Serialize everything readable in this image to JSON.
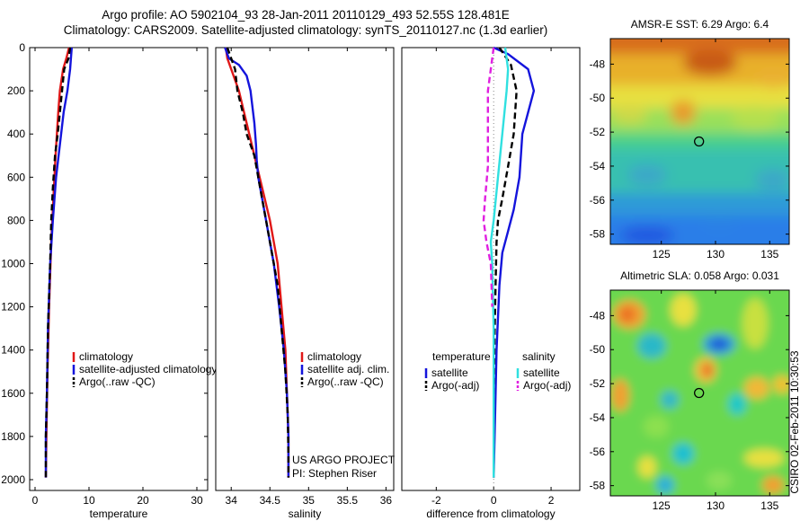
{
  "header": {
    "line1": "Argo profile: AO 5902104_93 28-Jan-2011 20110129_493 52.55S 128.481E",
    "line2": "Climatology: CARS2009. Satellite-adjusted climatology: synTS_20110127.nc (1.3d earlier)"
  },
  "side_label": "CSIRO 02-Feb-2011 10:30:53",
  "colors": {
    "red": "#e01818",
    "blue": "#1414dc",
    "black": "#000000",
    "magenta": "#e020e0",
    "cyan": "#30e0e0"
  },
  "chart_data": [
    {
      "type": "line",
      "panel": "temperature",
      "xlabel": "temperature",
      "ylabel": "",
      "xlim": [
        -1,
        32
      ],
      "ylim": [
        2050,
        0
      ],
      "y_reversed": true,
      "xticks": [
        0,
        10,
        20,
        30
      ],
      "xtick_labels": [
        "0",
        "10",
        "20",
        "30"
      ],
      "yticks": [
        0,
        200,
        400,
        600,
        800,
        1000,
        1200,
        1400,
        1600,
        1800,
        2000
      ],
      "ytick_labels": [
        "0",
        "200",
        "400",
        "600",
        "800",
        "1000",
        "1200",
        "1400",
        "1600",
        "1800",
        "2000"
      ],
      "legend": {
        "placement": "lower-middle",
        "entries": [
          "climatology",
          "satellite-adjusted climatology",
          "Argo(..raw -QC)"
        ]
      },
      "series": [
        {
          "name": "climatology",
          "color": "red",
          "dash": "solid",
          "points": [
            [
              6.3,
              0
            ],
            [
              5.8,
              50
            ],
            [
              5.2,
              100
            ],
            [
              4.6,
              200
            ],
            [
              4.3,
              300
            ],
            [
              3.8,
              500
            ],
            [
              3.4,
              700
            ],
            [
              3.0,
              900
            ],
            [
              2.6,
              1200
            ],
            [
              2.3,
              1500
            ],
            [
              2.1,
              1800
            ],
            [
              2.0,
              1990
            ]
          ]
        },
        {
          "name": "satellite-adjusted climatology",
          "color": "blue",
          "dash": "solid",
          "points": [
            [
              6.8,
              0
            ],
            [
              6.5,
              100
            ],
            [
              6.0,
              200
            ],
            [
              5.3,
              300
            ],
            [
              4.6,
              450
            ],
            [
              3.9,
              600
            ],
            [
              3.3,
              800
            ],
            [
              2.8,
              1000
            ],
            [
              2.4,
              1300
            ],
            [
              2.2,
              1600
            ],
            [
              2.0,
              1800
            ],
            [
              2.0,
              1990
            ]
          ]
        },
        {
          "name": "Argo(..raw -QC)",
          "color": "black",
          "dash": "dashed",
          "points": [
            [
              6.5,
              0
            ],
            [
              6.2,
              50
            ],
            [
              5.4,
              100
            ],
            [
              5.0,
              200
            ],
            [
              4.6,
              300
            ],
            [
              4.2,
              400
            ],
            [
              3.7,
              500
            ],
            [
              3.3,
              650
            ],
            [
              3.0,
              800
            ],
            [
              2.8,
              1000
            ],
            [
              2.4,
              1300
            ],
            [
              2.2,
              1600
            ],
            [
              2.0,
              1800
            ],
            [
              2.0,
              1990
            ]
          ]
        }
      ]
    },
    {
      "type": "line",
      "panel": "salinity",
      "xlabel": "salinity",
      "ylabel": "",
      "xlim": [
        33.8,
        36.1
      ],
      "ylim": [
        2050,
        0
      ],
      "y_reversed": true,
      "xticks": [
        34,
        34.5,
        35,
        35.5,
        36
      ],
      "xtick_labels": [
        "34",
        "34.5",
        "35",
        "35.5",
        "36"
      ],
      "yticks": [],
      "ytick_labels": [],
      "legend": {
        "placement": "lower-right",
        "entries": [
          "climatology",
          "satellite adj. clim.",
          "Argo(..raw -QC)"
        ]
      },
      "annotations": [
        "US ARGO PROJECT",
        "PI: Stephen Riser"
      ],
      "series": [
        {
          "name": "climatology",
          "color": "red",
          "dash": "solid",
          "points": [
            [
              33.93,
              0
            ],
            [
              33.95,
              50
            ],
            [
              34.0,
              100
            ],
            [
              34.1,
              200
            ],
            [
              34.2,
              350
            ],
            [
              34.3,
              500
            ],
            [
              34.4,
              650
            ],
            [
              34.5,
              800
            ],
            [
              34.6,
              1000
            ],
            [
              34.65,
              1200
            ],
            [
              34.7,
              1400
            ],
            [
              34.72,
              1600
            ],
            [
              34.74,
              1800
            ],
            [
              34.74,
              1990
            ]
          ]
        },
        {
          "name": "satellite adj. clim.",
          "color": "blue",
          "dash": "solid",
          "points": [
            [
              33.92,
              0
            ],
            [
              33.97,
              50
            ],
            [
              34.1,
              80
            ],
            [
              34.2,
              130
            ],
            [
              34.25,
              200
            ],
            [
              34.3,
              350
            ],
            [
              34.32,
              450
            ],
            [
              34.33,
              520
            ],
            [
              34.35,
              600
            ],
            [
              34.45,
              800
            ],
            [
              34.55,
              1000
            ],
            [
              34.62,
              1200
            ],
            [
              34.68,
              1400
            ],
            [
              34.72,
              1600
            ],
            [
              34.74,
              1800
            ],
            [
              34.74,
              1990
            ]
          ]
        },
        {
          "name": "Argo(..raw -QC)",
          "color": "black",
          "dash": "dashed",
          "points": [
            [
              33.95,
              0
            ],
            [
              34.0,
              50
            ],
            [
              34.05,
              100
            ],
            [
              34.08,
              200
            ],
            [
              34.15,
              300
            ],
            [
              34.2,
              400
            ],
            [
              34.3,
              500
            ],
            [
              34.35,
              600
            ],
            [
              34.45,
              800
            ],
            [
              34.5,
              900
            ],
            [
              34.6,
              1100
            ],
            [
              34.65,
              1300
            ],
            [
              34.7,
              1500
            ],
            [
              34.73,
              1700
            ],
            [
              34.74,
              1900
            ],
            [
              34.74,
              1990
            ]
          ]
        }
      ]
    },
    {
      "type": "line",
      "panel": "difference",
      "xlabel": "difference from climatology",
      "ylabel": "",
      "xlim": [
        -3.2,
        3.0
      ],
      "ylim": [
        2050,
        0
      ],
      "y_reversed": true,
      "xticks": [
        -2,
        0,
        2
      ],
      "xtick_labels": [
        "-2",
        "0",
        "2"
      ],
      "yticks": [],
      "ytick_labels": [],
      "legend": {
        "placement": "lower-middle",
        "columns": [
          {
            "heading": "temperature",
            "entries": [
              "satellite",
              "Argo(-adj)"
            ]
          },
          {
            "heading": "salinity",
            "entries": [
              "satellite",
              "Argo(-adj)"
            ]
          }
        ]
      },
      "series": [
        {
          "name": "temperature satellite",
          "color": "blue",
          "dash": "solid",
          "points": [
            [
              0.0,
              0
            ],
            [
              0.5,
              30
            ],
            [
              1.2,
              100
            ],
            [
              1.4,
              200
            ],
            [
              1.0,
              400
            ],
            [
              0.9,
              600
            ],
            [
              0.7,
              750
            ],
            [
              0.5,
              850
            ],
            [
              0.3,
              950
            ],
            [
              0.2,
              1100
            ],
            [
              0.1,
              1400
            ],
            [
              0.05,
              1700
            ],
            [
              0.0,
              1990
            ]
          ]
        },
        {
          "name": "temperature Argo(-adj)",
          "color": "black",
          "dash": "dashed",
          "points": [
            [
              0.2,
              0
            ],
            [
              0.6,
              80
            ],
            [
              0.8,
              200
            ],
            [
              0.7,
              400
            ],
            [
              0.5,
              550
            ],
            [
              0.3,
              700
            ],
            [
              0.15,
              800
            ],
            [
              0.1,
              900
            ],
            [
              0.05,
              1200
            ],
            [
              0.0,
              1600
            ],
            [
              0.0,
              1990
            ]
          ]
        },
        {
          "name": "salinity satellite",
          "color": "cyan",
          "dash": "solid",
          "points": [
            [
              0.4,
              0
            ],
            [
              0.5,
              100
            ],
            [
              0.45,
              200
            ],
            [
              0.3,
              400
            ],
            [
              0.15,
              600
            ],
            [
              0.0,
              800
            ],
            [
              -0.1,
              900
            ],
            [
              -0.05,
              1000
            ],
            [
              0.0,
              1300
            ],
            [
              0.0,
              1600
            ],
            [
              0.0,
              1990
            ]
          ]
        },
        {
          "name": "salinity Argo(-adj)",
          "color": "magenta",
          "dash": "dashed",
          "points": [
            [
              0.0,
              0
            ],
            [
              -0.1,
              100
            ],
            [
              -0.2,
              200
            ],
            [
              -0.2,
              400
            ],
            [
              -0.2,
              550
            ],
            [
              -0.3,
              700
            ],
            [
              -0.35,
              800
            ],
            [
              -0.25,
              900
            ],
            [
              -0.1,
              1000
            ],
            [
              -0.05,
              1200
            ]
          ]
        }
      ]
    },
    {
      "type": "heatmap",
      "panel": "sst-map",
      "title": "AMSR-E SST: 6.29 Argo: 6.4",
      "xticks": [
        125,
        130,
        135
      ],
      "xtick_labels": [
        "125",
        "130",
        "135"
      ],
      "yticks": [
        -48,
        -50,
        -52,
        -54,
        -56,
        -58
      ],
      "ytick_labels": [
        "-48",
        "-50",
        "-52",
        "-54",
        "-56",
        "-58"
      ],
      "marker": {
        "lon": 128.481,
        "lat": -52.55
      }
    },
    {
      "type": "heatmap",
      "panel": "sla-map",
      "title": "Altimetric SLA: 0.058 Argo: 0.031",
      "xticks": [
        125,
        130,
        135
      ],
      "xtick_labels": [
        "125",
        "130",
        "135"
      ],
      "yticks": [
        -48,
        -50,
        -52,
        -54,
        -56,
        -58
      ],
      "ytick_labels": [
        "-48",
        "-50",
        "-52",
        "-54",
        "-56",
        "-58"
      ],
      "marker": {
        "lon": 128.481,
        "lat": -52.55
      }
    }
  ]
}
